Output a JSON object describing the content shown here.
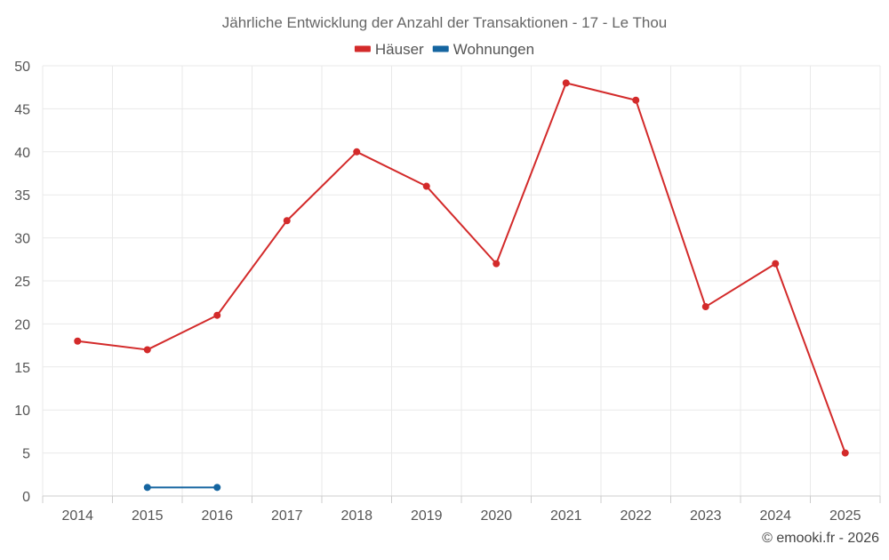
{
  "chart_data": {
    "type": "line",
    "title": "Jährliche Entwicklung der Anzahl der Transaktionen - 17 - Le Thou",
    "x": [
      "2014",
      "2015",
      "2016",
      "2017",
      "2018",
      "2019",
      "2020",
      "2021",
      "2022",
      "2023",
      "2024",
      "2025"
    ],
    "series": [
      {
        "name": "Häuser",
        "color": "#d32a2a",
        "values": [
          18,
          17,
          21,
          32,
          40,
          36,
          27,
          48,
          46,
          22,
          27,
          5
        ]
      },
      {
        "name": "Wohnungen",
        "color": "#1565a0",
        "values": [
          null,
          1,
          1,
          null,
          null,
          null,
          null,
          null,
          null,
          null,
          null,
          null
        ]
      }
    ],
    "ylim": [
      0,
      50
    ],
    "yticks": [
      "0",
      "5",
      "10",
      "15",
      "20",
      "25",
      "30",
      "35",
      "40",
      "45",
      "50"
    ],
    "xlabel": "",
    "ylabel": "",
    "grid": true,
    "legend": "top-center"
  },
  "credit": "© emooki.fr - 2026"
}
